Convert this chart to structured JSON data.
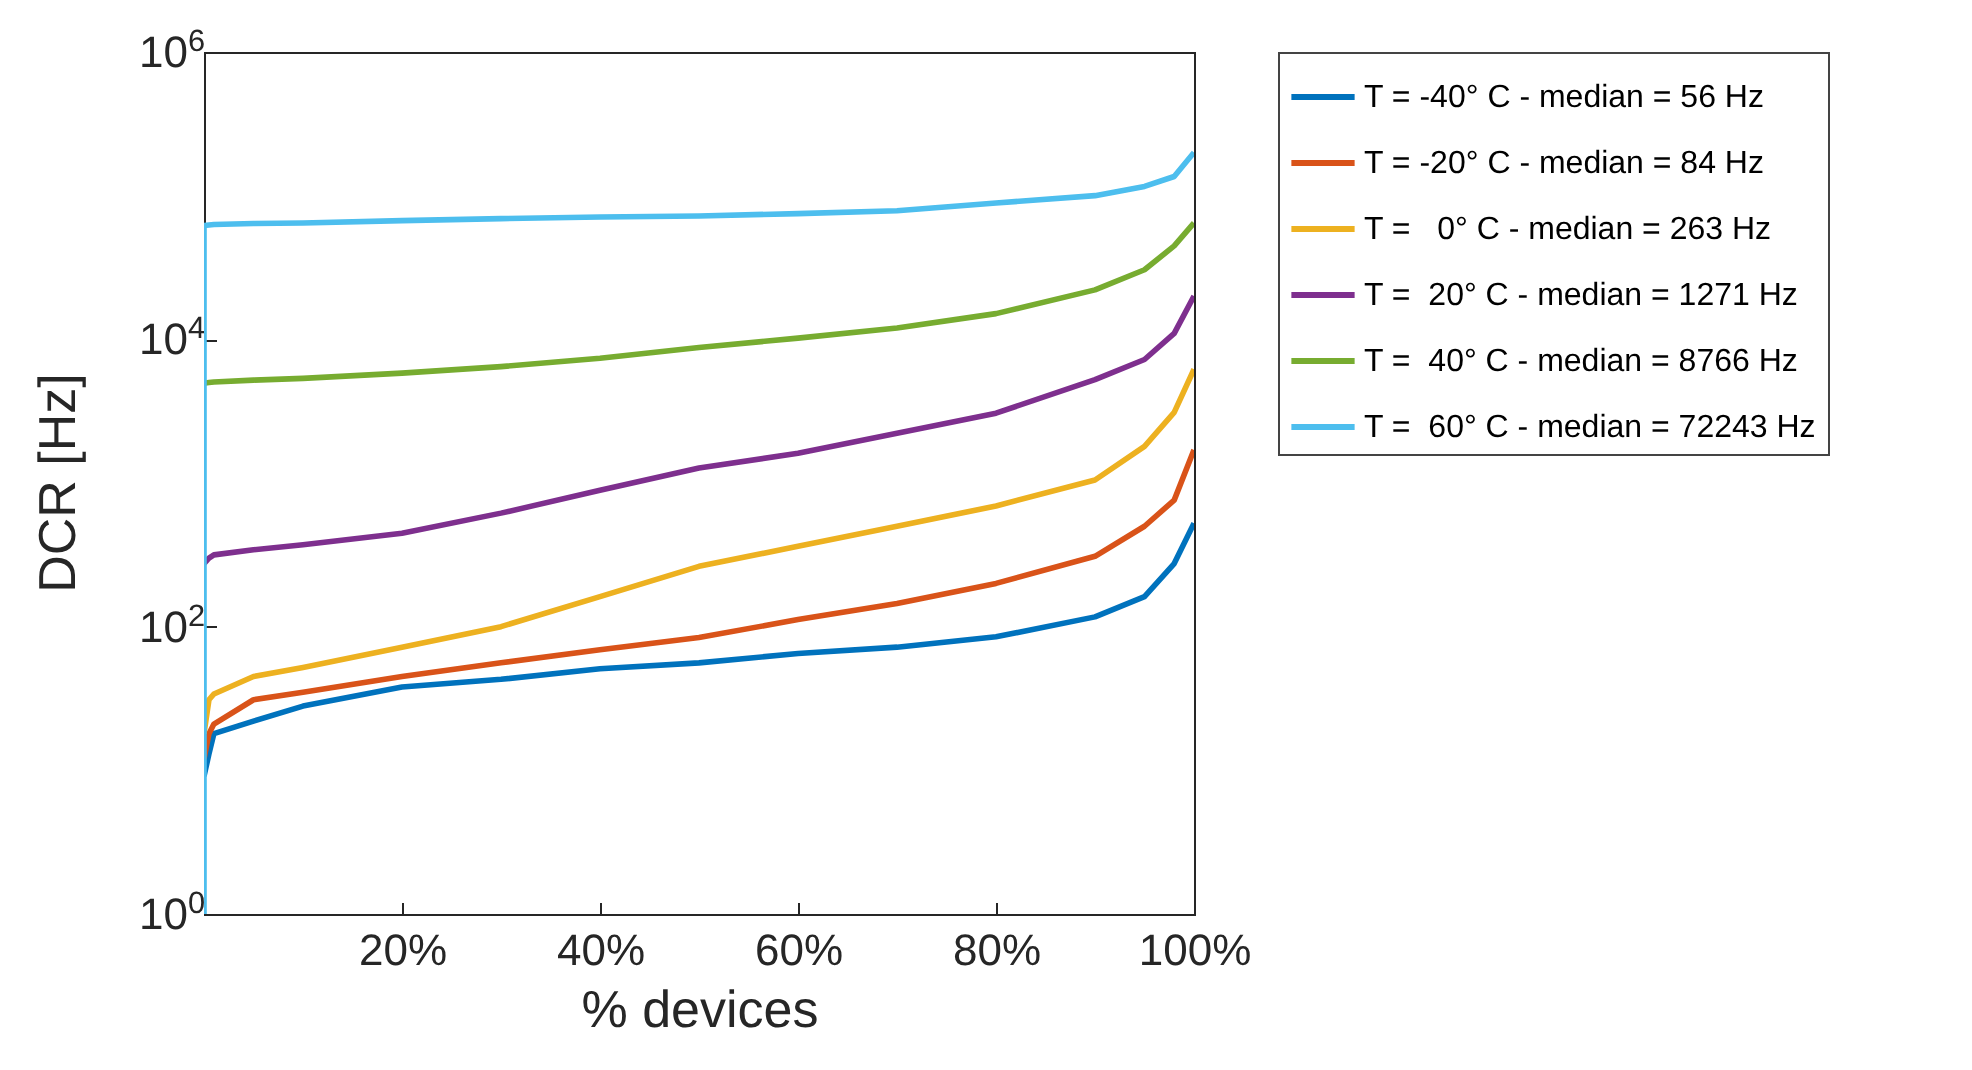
{
  "chart_data": {
    "type": "line",
    "xlabel": "% devices",
    "ylabel": "DCR [Hz]",
    "x": [
      0,
      0.5,
      1,
      5,
      10,
      20,
      30,
      40,
      50,
      60,
      70,
      80,
      90,
      95,
      98,
      100
    ],
    "series": [
      {
        "name": "T = -40° C - median = 56 Hz",
        "color": "#0072bd",
        "values": [
          9.1,
          13,
          18,
          22,
          28,
          38,
          43,
          51,
          56,
          65,
          72,
          85,
          117,
          162,
          275,
          525
        ]
      },
      {
        "name": "T = -20° C - median = 84 Hz",
        "color": "#d95319",
        "values": [
          12,
          18,
          21,
          31,
          35,
          45,
          56,
          69,
          84,
          112,
          145,
          200,
          309,
          500,
          760,
          1700
        ]
      },
      {
        "name": "T =   0° C - median = 263 Hz",
        "color": "#edb120",
        "values": [
          18,
          31,
          34,
          45,
          52,
          72,
          100,
          162,
          263,
          363,
          500,
          692,
          1050,
          1800,
          3100,
          6200
        ]
      },
      {
        "name": "T =  20° C - median = 1271 Hz",
        "color": "#7e2f8e",
        "values": [
          275,
          300,
          316,
          343,
          372,
          447,
          617,
          891,
          1271,
          1610,
          2220,
          3060,
          5250,
          7240,
          11000,
          20000
        ]
      },
      {
        "name": "T =  40° C - median = 8766 Hz",
        "color": "#77ac30",
        "values": [
          4950,
          5000,
          5050,
          5200,
          5350,
          5820,
          6460,
          7380,
          8766,
          10200,
          12000,
          15100,
          22100,
          30500,
          44700,
          64600
        ]
      },
      {
        "name": "T =  60° C - median = 72243 Hz",
        "color": "#4dbeee",
        "x": [
          0,
          0,
          1,
          5,
          10,
          20,
          30,
          40,
          50,
          60,
          70,
          80,
          90,
          95,
          98,
          100
        ],
        "values": [
          1,
          62000,
          63000,
          64000,
          64600,
          67000,
          69200,
          71000,
          72243,
          75000,
          78500,
          89000,
          100000,
          116000,
          136000,
          200000
        ]
      }
    ],
    "xlim": [
      0,
      100
    ],
    "xticks": [
      {
        "value": 20,
        "label": "20%"
      },
      {
        "value": 40,
        "label": "40%"
      },
      {
        "value": 60,
        "label": "60%"
      },
      {
        "value": 80,
        "label": "80%"
      },
      {
        "value": 100,
        "label": "100%"
      }
    ],
    "ylim": [
      1,
      1000000
    ],
    "log": true,
    "yticks": [
      {
        "value": 1,
        "label": "10$^{0}$"
      },
      {
        "value": 100,
        "label": "10$^{2}$"
      },
      {
        "value": 10000,
        "label": "10$^{4}$"
      },
      {
        "value": 1000000,
        "label": "10$^{6}$"
      }
    ],
    "legend": "right",
    "grid": false,
    "line_style": "solid"
  }
}
